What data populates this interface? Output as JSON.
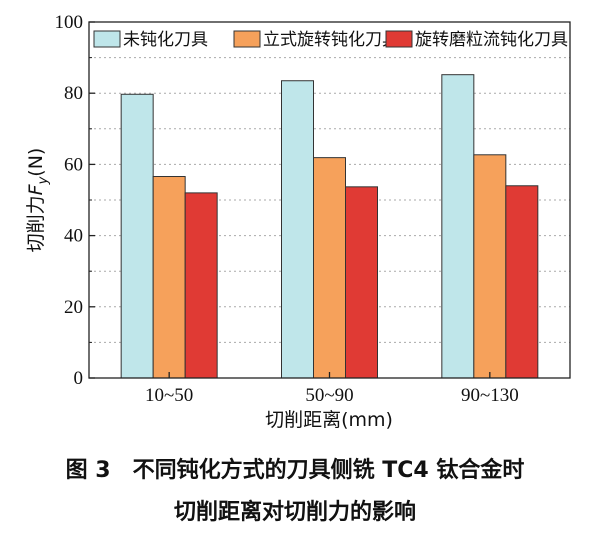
{
  "chart_data": {
    "type": "bar",
    "categories": [
      "10~50",
      "50~90",
      "90~130"
    ],
    "series": [
      {
        "name": "未钝化刀具",
        "values": [
          79.7,
          83.5,
          85.2
        ],
        "color": "#bfe6ea"
      },
      {
        "name": "立式旋转钝化刀具",
        "values": [
          56.6,
          61.9,
          62.7
        ],
        "color": "#f6a15b"
      },
      {
        "name": "旋转磨粒流钝化刀具",
        "values": [
          52.0,
          53.7,
          54.0
        ],
        "color": "#e03a34"
      }
    ],
    "xlabel": "切削距离(mm)",
    "ylabel_main": "切削力",
    "ylabel_var": "F",
    "ylabel_sub": "y",
    "ylabel_unit": "(N)",
    "ylim": [
      0,
      100
    ],
    "yticks": [
      0,
      20,
      40,
      60,
      80,
      100
    ],
    "grid": true,
    "legend_position": "top"
  },
  "caption": {
    "line1": "图 3　不同钝化方式的刀具侧铣 TC4 钛合金时",
    "line2": "切削距离对切削力的影响"
  }
}
